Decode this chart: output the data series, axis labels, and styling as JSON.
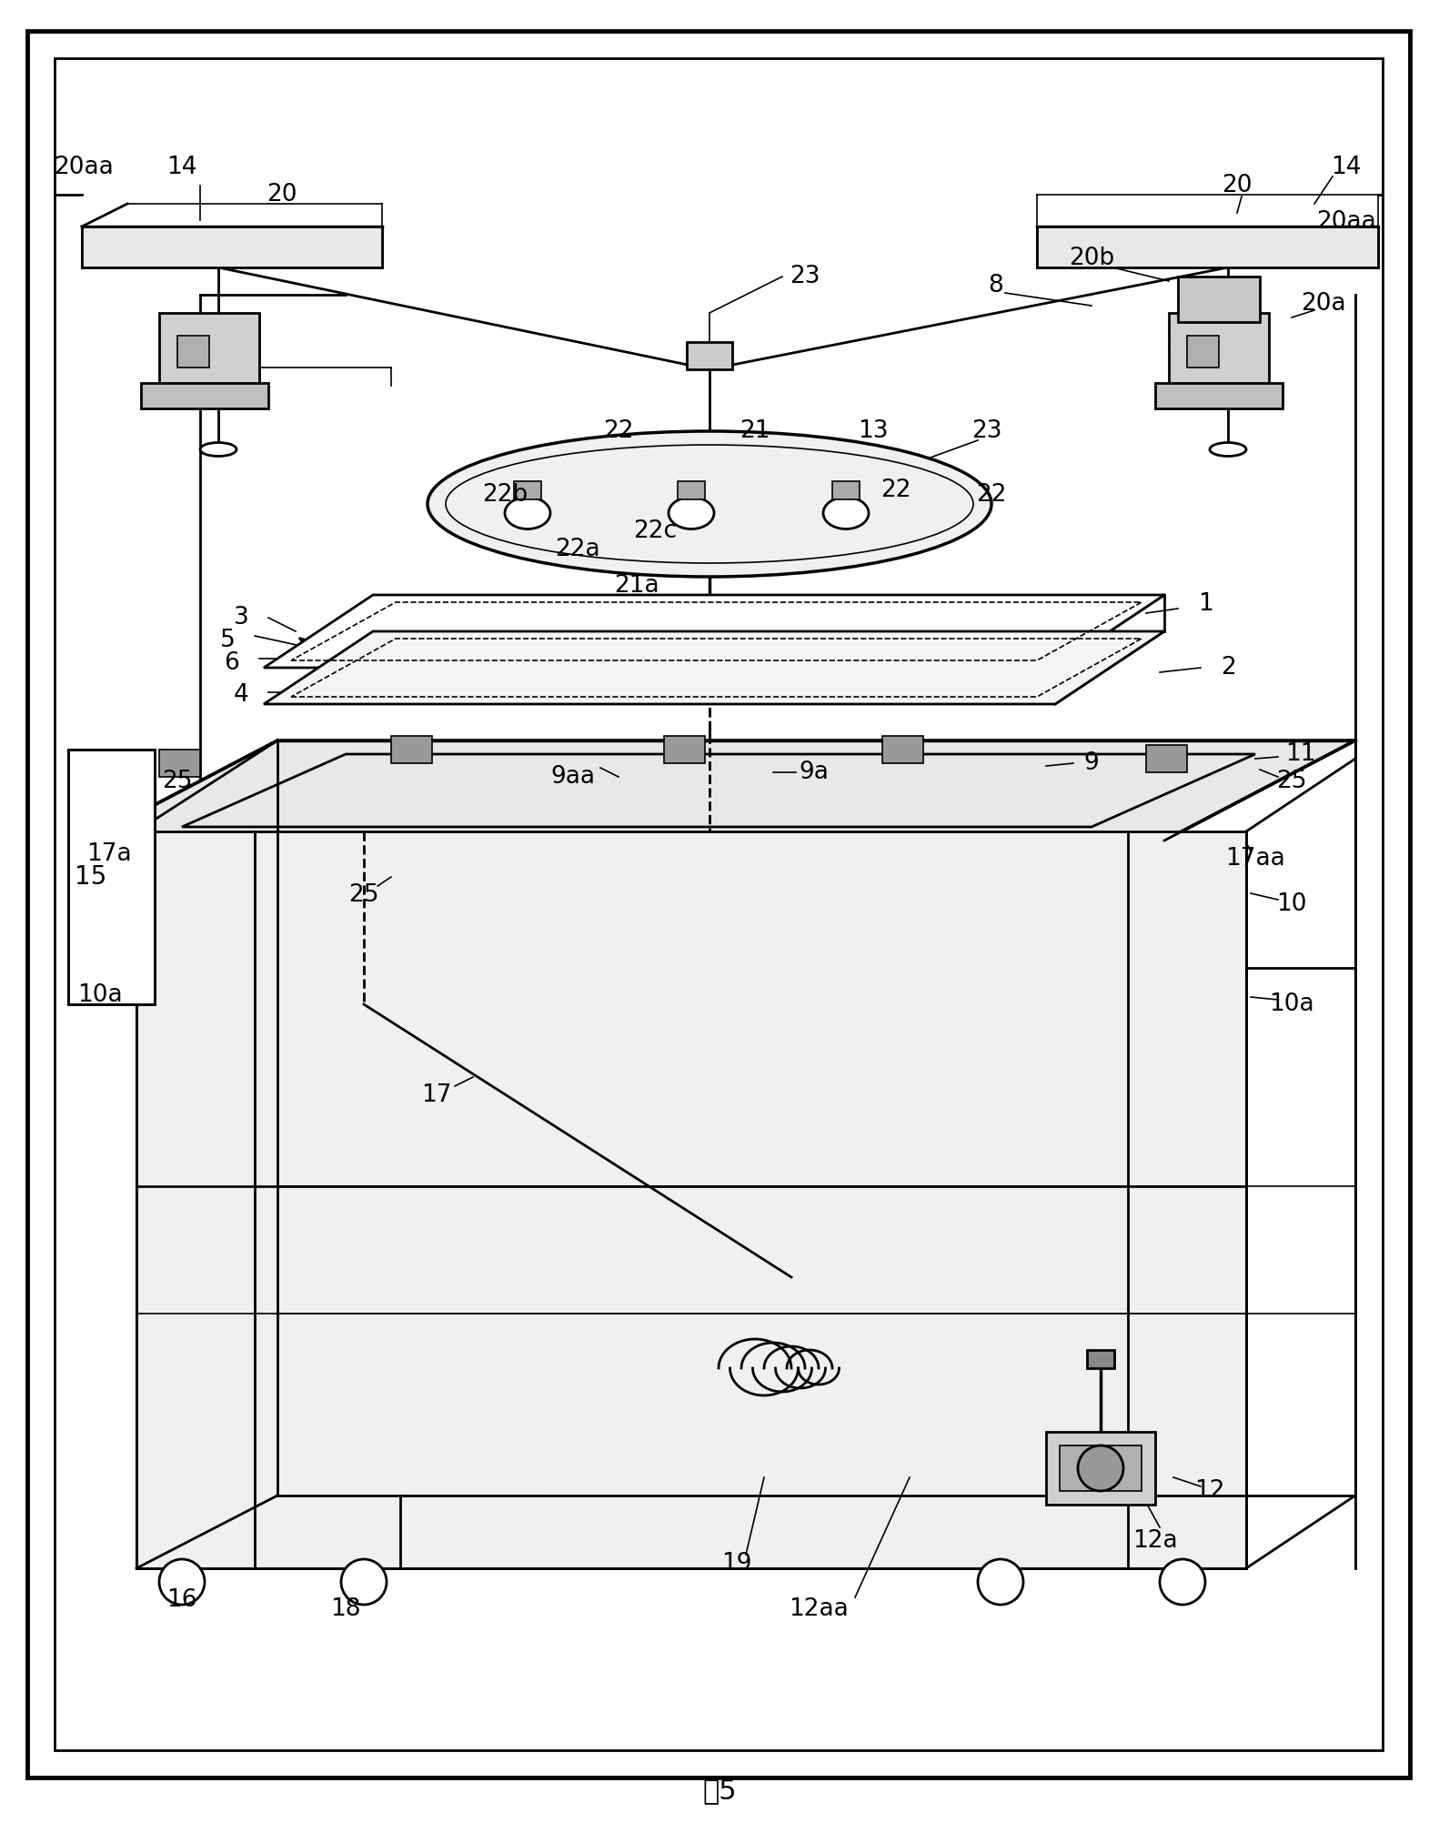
{
  "title": "图5",
  "bg_color": "#ffffff",
  "border_color": "#000000",
  "line_color": "#000000",
  "labels": {
    "14_left": "14",
    "20_left": "20",
    "20aa_left": "20aa",
    "23_top": "23",
    "13": "13",
    "22_top": "22",
    "21": "21",
    "22b": "22b",
    "22c": "22c",
    "22a": "22a",
    "21a": "21a",
    "3": "3",
    "5": "5",
    "6": "6",
    "1": "1",
    "2": "2",
    "4": "4",
    "9aa": "9aa",
    "9a": "9a",
    "9": "9",
    "11": "11",
    "25_left": "25",
    "17a": "17a",
    "25_bottom_left": "25",
    "17aa": "17aa",
    "10": "10",
    "10a_left": "10a",
    "10a_right": "10a",
    "17": "17",
    "16": "16",
    "18": "18",
    "19": "19",
    "12aa": "12aa",
    "12a": "12a",
    "12": "12",
    "15": "15",
    "14_right": "14",
    "20_right": "20",
    "20aa_right": "20aa",
    "20b": "20b",
    "8": "8",
    "20a": "20a",
    "22_right": "22",
    "23_right": "23",
    "25_right": "25"
  }
}
